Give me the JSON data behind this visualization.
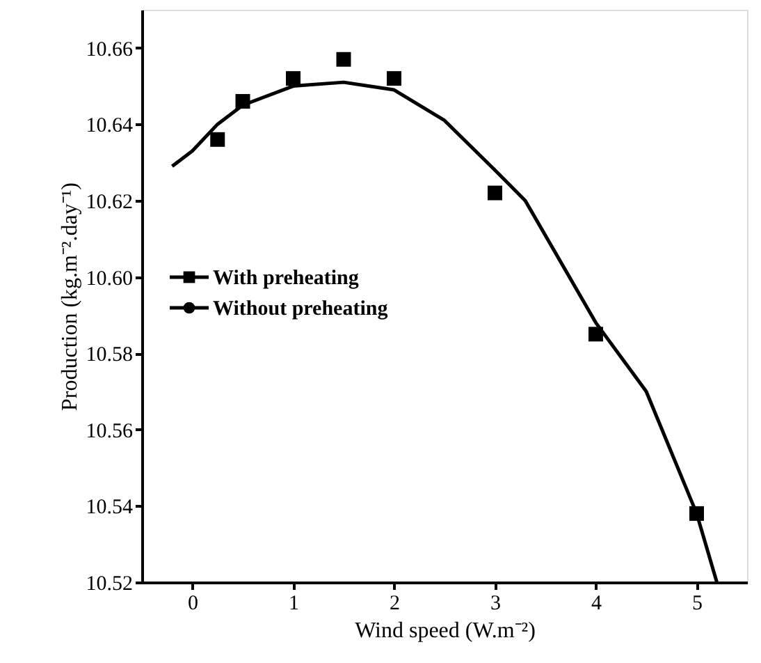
{
  "chart_data": {
    "type": "scatter",
    "xlabel": "Wind speed (W.m⁻²)",
    "ylabel": "Production (kg.m⁻².day⁻¹)",
    "xlim": [
      -0.5,
      5.5
    ],
    "xticks": [
      0,
      1,
      2,
      3,
      4,
      5
    ],
    "ylim": [
      10.52,
      10.67
    ],
    "yticks": [
      10.52,
      10.54,
      10.56,
      10.58,
      {
        "value": 10.6,
        "label": "10.60"
      },
      10.62,
      10.64,
      10.66
    ],
    "grid": false,
    "legend": "center left",
    "series": [
      {
        "name": "With preheating",
        "type": "scatter",
        "marker": "square",
        "color": "#000000",
        "x": [
          0.25,
          0.5,
          1,
          1.5,
          2,
          3,
          4,
          5
        ],
        "values": [
          10.636,
          10.646,
          10.652,
          10.657,
          10.652,
          10.622,
          10.585,
          10.538
        ]
      },
      {
        "name": "Without preheating",
        "type": "line",
        "line_style": "solid",
        "color": "#000000",
        "x": [
          -0.2,
          0,
          0.25,
          0.5,
          1,
          1.5,
          2,
          2.5,
          3,
          3.3,
          4,
          4.5,
          5,
          5.2
        ],
        "values": [
          10.629,
          10.633,
          10.64,
          10.645,
          10.65,
          10.651,
          10.649,
          10.641,
          10.628,
          10.62,
          10.588,
          10.57,
          10.538,
          10.52
        ]
      }
    ]
  }
}
